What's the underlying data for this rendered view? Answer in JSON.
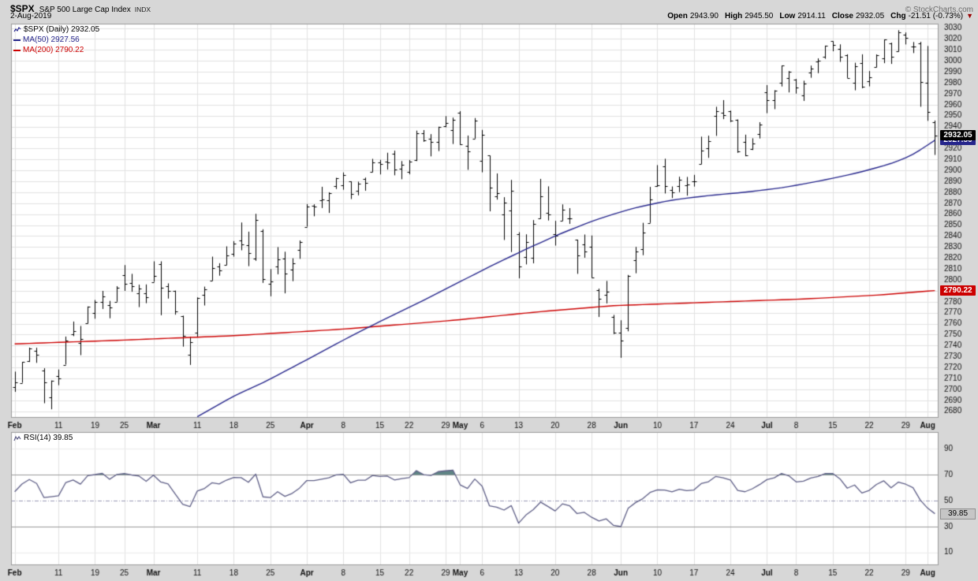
{
  "header": {
    "symbol": "$SPX",
    "name": "S&P 500 Large Cap Index",
    "exchange": "INDX",
    "date": "2-Aug-2019",
    "copyright": "© StockCharts.com",
    "quote": {
      "open_label": "Open",
      "open": "2943.90",
      "high_label": "High",
      "high": "2945.50",
      "low_label": "Low",
      "low": "2914.11",
      "close_label": "Close",
      "close": "2932.05",
      "chg_label": "Chg",
      "chg": "-21.51 (-0.73%)",
      "direction_arrow": "▼"
    }
  },
  "main_chart": {
    "legend": {
      "series_label": "$SPX (Daily) 2932.05",
      "ma50_label": "MA(50) 2927.56",
      "ma200_label": "MA(200) 2790.22"
    },
    "price_labels": {
      "close": "2932.05",
      "ma50": "2927.56",
      "ma200": "2790.22"
    }
  },
  "rsi_panel": {
    "legend_label": "RSI(14) 39.85",
    "value_label": "39.85"
  },
  "colors": {
    "background": "#d7d7d7",
    "plot_bg": "#ffffff",
    "grid": "#e2e2e2",
    "grid_faint": "#ececec",
    "border": "#999999",
    "bar": "#000000",
    "ma50": "#26268c",
    "ma200": "#cc0000",
    "rsi_line": "#5f5f87",
    "rsi_fill": "#5f8585",
    "rsi_band": "#9c9c9c",
    "rsi_mid": "#9a9ab5",
    "axis_text": "#111111"
  },
  "chart_data": {
    "type": "ohlc",
    "title": "$SPX S&P 500 Large Cap Index (Daily)",
    "timeframe": "Daily, Feb 2019 - Aug 2019",
    "y_axis": {
      "min": 2674,
      "max": 3034,
      "tick_min": 2680,
      "tick_max": 3030,
      "tick_step": 10
    },
    "x_ticks": [
      {
        "label": "Feb",
        "i": 0,
        "m": true
      },
      {
        "label": "11",
        "i": 6
      },
      {
        "label": "19",
        "i": 11
      },
      {
        "label": "25",
        "i": 15
      },
      {
        "label": "Mar",
        "i": 19,
        "m": true
      },
      {
        "label": "11",
        "i": 25
      },
      {
        "label": "18",
        "i": 30
      },
      {
        "label": "25",
        "i": 35
      },
      {
        "label": "Apr",
        "i": 40,
        "m": true
      },
      {
        "label": "8",
        "i": 45
      },
      {
        "label": "15",
        "i": 50
      },
      {
        "label": "22",
        "i": 54
      },
      {
        "label": "29",
        "i": 59
      },
      {
        "label": "May",
        "i": 61,
        "m": true
      },
      {
        "label": "6",
        "i": 64
      },
      {
        "label": "13",
        "i": 69
      },
      {
        "label": "20",
        "i": 74
      },
      {
        "label": "28",
        "i": 79
      },
      {
        "label": "Jun",
        "i": 83,
        "m": true
      },
      {
        "label": "10",
        "i": 88
      },
      {
        "label": "17",
        "i": 93
      },
      {
        "label": "24",
        "i": 98
      },
      {
        "label": "Jul",
        "i": 103,
        "m": true
      },
      {
        "label": "8",
        "i": 107
      },
      {
        "label": "15",
        "i": 112
      },
      {
        "label": "22",
        "i": 117
      },
      {
        "label": "29",
        "i": 122
      },
      {
        "label": "Aug",
        "i": 125,
        "m": true
      }
    ],
    "dates": [
      "2/1",
      "2/4",
      "2/5",
      "2/6",
      "2/7",
      "2/8",
      "2/11",
      "2/12",
      "2/13",
      "2/14",
      "2/15",
      "2/19",
      "2/20",
      "2/21",
      "2/22",
      "2/25",
      "2/26",
      "2/27",
      "2/28",
      "3/1",
      "3/4",
      "3/5",
      "3/6",
      "3/7",
      "3/8",
      "3/11",
      "3/12",
      "3/13",
      "3/14",
      "3/15",
      "3/18",
      "3/19",
      "3/20",
      "3/21",
      "3/22",
      "3/25",
      "3/26",
      "3/27",
      "3/28",
      "3/29",
      "4/1",
      "4/2",
      "4/3",
      "4/4",
      "4/5",
      "4/8",
      "4/9",
      "4/10",
      "4/11",
      "4/12",
      "4/15",
      "4/16",
      "4/17",
      "4/18",
      "4/22",
      "4/23",
      "4/24",
      "4/25",
      "4/26",
      "4/29",
      "4/30",
      "5/1",
      "5/2",
      "5/3",
      "5/6",
      "5/7",
      "5/8",
      "5/9",
      "5/10",
      "5/13",
      "5/14",
      "5/15",
      "5/16",
      "5/17",
      "5/20",
      "5/21",
      "5/22",
      "5/23",
      "5/24",
      "5/28",
      "5/29",
      "5/30",
      "5/31",
      "6/3",
      "6/4",
      "6/5",
      "6/6",
      "6/7",
      "6/10",
      "6/11",
      "6/12",
      "6/13",
      "6/14",
      "6/17",
      "6/18",
      "6/19",
      "6/20",
      "6/21",
      "6/24",
      "6/25",
      "6/26",
      "6/27",
      "6/28",
      "7/1",
      "7/2",
      "7/3",
      "7/5",
      "7/8",
      "7/9",
      "7/10",
      "7/11",
      "7/12",
      "7/15",
      "7/16",
      "7/17",
      "7/18",
      "7/19",
      "7/22",
      "7/23",
      "7/24",
      "7/25",
      "7/26",
      "7/29",
      "7/30",
      "7/31",
      "8/1",
      "8/2"
    ],
    "ohlc": [
      [
        2702.3,
        2716.2,
        2697.7,
        2706.5
      ],
      [
        2706.0,
        2725.0,
        2706.0,
        2724.9
      ],
      [
        2725.5,
        2738.1,
        2725.0,
        2737.7
      ],
      [
        2735.0,
        2738.0,
        2724.2,
        2731.6
      ],
      [
        2717.5,
        2719.3,
        2687.3,
        2706.1
      ],
      [
        2692.4,
        2708.1,
        2681.8,
        2707.9
      ],
      [
        2712.4,
        2718.1,
        2703.8,
        2709.8
      ],
      [
        2722.6,
        2748.2,
        2722.6,
        2744.7
      ],
      [
        2750.3,
        2761.9,
        2748.6,
        2753.0
      ],
      [
        2742.2,
        2757.9,
        2731.2,
        2745.7
      ],
      [
        2760.2,
        2775.7,
        2760.2,
        2775.6
      ],
      [
        2769.7,
        2781.6,
        2764.5,
        2779.8
      ],
      [
        2780.0,
        2789.9,
        2773.4,
        2784.7
      ],
      [
        2777.0,
        2780.8,
        2764.9,
        2774.9
      ],
      [
        2780.0,
        2794.2,
        2780.0,
        2792.7
      ],
      [
        2804.2,
        2813.5,
        2789.9,
        2796.1
      ],
      [
        2797.4,
        2805.5,
        2789.1,
        2793.9
      ],
      [
        2788.0,
        2795.6,
        2775.1,
        2792.4
      ],
      [
        2787.7,
        2795.8,
        2778.7,
        2784.5
      ],
      [
        2798.2,
        2816.9,
        2798.2,
        2803.7
      ],
      [
        2814.4,
        2816.9,
        2767.7,
        2792.8
      ],
      [
        2794.0,
        2796.8,
        2782.9,
        2789.7
      ],
      [
        2790.2,
        2790.2,
        2768.2,
        2771.5
      ],
      [
        2766.6,
        2767.3,
        2739.0,
        2748.9
      ],
      [
        2731.9,
        2748.1,
        2722.3,
        2743.1
      ],
      [
        2751.5,
        2784.0,
        2747.4,
        2783.3
      ],
      [
        2786.1,
        2793.8,
        2776.6,
        2791.5
      ],
      [
        2799.3,
        2821.2,
        2799.3,
        2810.9
      ],
      [
        2812.0,
        2815.2,
        2803.8,
        2808.5
      ],
      [
        2813.6,
        2830.6,
        2813.6,
        2822.5
      ],
      [
        2824.0,
        2835.4,
        2821.2,
        2832.9
      ],
      [
        2836.1,
        2852.4,
        2827.0,
        2832.6
      ],
      [
        2831.6,
        2844.0,
        2812.5,
        2824.2
      ],
      [
        2819.7,
        2860.3,
        2817.4,
        2854.9
      ],
      [
        2844.8,
        2846.2,
        2797.2,
        2800.7
      ],
      [
        2796.4,
        2809.8,
        2785.0,
        2798.4
      ],
      [
        2812.0,
        2829.9,
        2805.1,
        2818.5
      ],
      [
        2819.2,
        2825.7,
        2787.7,
        2805.4
      ],
      [
        2809.4,
        2819.7,
        2798.8,
        2815.4
      ],
      [
        2827.3,
        2836.0,
        2819.2,
        2834.4
      ],
      [
        2848.6,
        2869.2,
        2848.6,
        2867.2
      ],
      [
        2867.8,
        2869.0,
        2858.1,
        2867.2
      ],
      [
        2872.4,
        2885.0,
        2865.6,
        2873.4
      ],
      [
        2873.0,
        2880.0,
        2861.1,
        2879.4
      ],
      [
        2885.4,
        2893.2,
        2883.0,
        2892.7
      ],
      [
        2886.4,
        2898.1,
        2882.3,
        2895.8
      ],
      [
        2889.9,
        2890.0,
        2873.8,
        2878.2
      ],
      [
        2881.2,
        2889.7,
        2877.2,
        2888.2
      ],
      [
        2891.9,
        2893.4,
        2881.4,
        2888.3
      ],
      [
        2899.0,
        2910.5,
        2898.4,
        2907.4
      ],
      [
        2907.0,
        2909.6,
        2896.3,
        2905.6
      ],
      [
        2908.0,
        2916.1,
        2900.7,
        2907.1
      ],
      [
        2915.1,
        2918.0,
        2895.5,
        2900.5
      ],
      [
        2901.7,
        2908.5,
        2891.9,
        2905.0
      ],
      [
        2898.8,
        2909.5,
        2896.4,
        2908.0
      ],
      [
        2909.7,
        2936.3,
        2908.5,
        2933.7
      ],
      [
        2934.0,
        2936.8,
        2926.1,
        2927.3
      ],
      [
        2928.9,
        2933.1,
        2912.8,
        2926.2
      ],
      [
        2925.8,
        2939.9,
        2917.6,
        2939.9
      ],
      [
        2940.6,
        2949.5,
        2939.4,
        2943.0
      ],
      [
        2937.1,
        2948.2,
        2924.1,
        2945.8
      ],
      [
        2952.3,
        2954.1,
        2923.4,
        2923.7
      ],
      [
        2922.2,
        2931.8,
        2900.5,
        2917.5
      ],
      [
        2929.0,
        2947.8,
        2929.0,
        2945.6
      ],
      [
        2909.0,
        2937.0,
        2898.2,
        2932.5
      ],
      [
        2913.4,
        2913.4,
        2862.6,
        2884.1
      ],
      [
        2876.0,
        2897.2,
        2873.3,
        2879.4
      ],
      [
        2860.0,
        2875.5,
        2836.4,
        2870.7
      ],
      [
        2863.1,
        2891.3,
        2825.4,
        2881.4
      ],
      [
        2841.9,
        2843.5,
        2801.4,
        2811.9
      ],
      [
        2820.6,
        2841.6,
        2814.1,
        2834.4
      ],
      [
        2820.2,
        2854.6,
        2815.1,
        2851.0
      ],
      [
        2855.8,
        2892.2,
        2855.8,
        2876.3
      ],
      [
        2861.0,
        2885.4,
        2854.2,
        2859.5
      ],
      [
        2841.9,
        2853.9,
        2831.3,
        2840.2
      ],
      [
        2854.0,
        2868.9,
        2854.0,
        2864.4
      ],
      [
        2856.1,
        2865.5,
        2851.1,
        2856.3
      ],
      [
        2836.6,
        2836.6,
        2805.5,
        2822.2
      ],
      [
        2832.2,
        2841.4,
        2820.2,
        2826.1
      ],
      [
        2830.0,
        2840.5,
        2801.9,
        2802.4
      ],
      [
        2790.5,
        2792.0,
        2766.1,
        2783.0
      ],
      [
        2786.6,
        2799.0,
        2778.5,
        2788.9
      ],
      [
        2766.2,
        2768.0,
        2750.5,
        2752.1
      ],
      [
        2751.5,
        2763.1,
        2728.8,
        2744.5
      ],
      [
        2756.4,
        2804.5,
        2753.0,
        2803.3
      ],
      [
        2818.1,
        2830.1,
        2806.0,
        2826.2
      ],
      [
        2828.4,
        2852.1,
        2822.5,
        2843.5
      ],
      [
        2852.0,
        2884.9,
        2852.0,
        2873.3
      ],
      [
        2885.6,
        2904.8,
        2885.0,
        2886.7
      ],
      [
        2903.9,
        2910.6,
        2878.9,
        2885.7
      ],
      [
        2882.0,
        2885.3,
        2874.7,
        2879.8
      ],
      [
        2886.0,
        2894.2,
        2880.1,
        2891.6
      ],
      [
        2886.7,
        2894.0,
        2876.9,
        2887.0
      ],
      [
        2889.8,
        2895.9,
        2885.2,
        2889.7
      ],
      [
        2905.8,
        2930.8,
        2905.8,
        2917.8
      ],
      [
        2920.6,
        2931.7,
        2911.4,
        2926.5
      ],
      [
        2949.6,
        2958.1,
        2931.5,
        2954.2
      ],
      [
        2952.6,
        2964.2,
        2946.8,
        2950.5
      ],
      [
        2953.8,
        2954.5,
        2944.1,
        2945.4
      ],
      [
        2945.8,
        2946.5,
        2916.0,
        2917.4
      ],
      [
        2926.1,
        2932.6,
        2912.9,
        2913.8
      ],
      [
        2919.7,
        2929.3,
        2918.6,
        2924.9
      ],
      [
        2932.9,
        2944.0,
        2929.1,
        2941.8
      ],
      [
        2971.4,
        2977.9,
        2952.2,
        2964.3
      ],
      [
        2964.0,
        2973.2,
        2955.9,
        2973.0
      ],
      [
        2980.0,
        2995.8,
        2976.6,
        2995.8
      ],
      [
        2984.3,
        2990.7,
        2971.2,
        2990.4
      ],
      [
        2982.6,
        2983.5,
        2970.1,
        2976.0
      ],
      [
        2968.4,
        2981.9,
        2963.4,
        2979.6
      ],
      [
        2989.2,
        2995.7,
        2984.6,
        2993.1
      ],
      [
        2999.6,
        3002.3,
        2988.8,
        2999.9
      ],
      [
        3003.4,
        3013.9,
        3001.9,
        3013.8
      ],
      [
        3017.8,
        3017.8,
        3008.8,
        3014.3
      ],
      [
        3010.9,
        3015.1,
        2999.1,
        3004.0
      ],
      [
        3005.5,
        3006.0,
        2984.4,
        2984.4
      ],
      [
        2979.7,
        2998.3,
        2973.1,
        2995.1
      ],
      [
        2998.0,
        3006.0,
        2975.0,
        2976.6
      ],
      [
        2981.6,
        2990.7,
        2976.7,
        2985.0
      ],
      [
        2994.2,
        3005.9,
        2994.2,
        3005.5
      ],
      [
        3002.4,
        3019.6,
        2997.9,
        3019.6
      ],
      [
        3016.3,
        3016.6,
        2997.2,
        3003.7
      ],
      [
        3008.6,
        3028.0,
        3008.6,
        3025.9
      ],
      [
        3024.0,
        3026.0,
        3015.0,
        3021.0
      ],
      [
        3013.0,
        3017.2,
        3007.1,
        3013.2
      ],
      [
        3016.2,
        3017.4,
        2958.1,
        2980.4
      ],
      [
        2980.3,
        3013.6,
        2945.2,
        2953.6
      ],
      [
        2943.9,
        2945.5,
        2914.1,
        2932.05
      ]
    ],
    "ma50": {
      "label": "MA(50)",
      "last": 2927.56,
      "anchors": [
        [
          25,
          2675
        ],
        [
          30,
          2694
        ],
        [
          34,
          2706
        ],
        [
          40,
          2727
        ],
        [
          45,
          2745
        ],
        [
          50,
          2762
        ],
        [
          55,
          2778
        ],
        [
          60,
          2795
        ],
        [
          65,
          2812
        ],
        [
          70,
          2828
        ],
        [
          75,
          2843
        ],
        [
          80,
          2856
        ],
        [
          85,
          2866
        ],
        [
          90,
          2873
        ],
        [
          95,
          2877
        ],
        [
          100,
          2880
        ],
        [
          105,
          2884
        ],
        [
          110,
          2890
        ],
        [
          115,
          2897
        ],
        [
          120,
          2906
        ],
        [
          123,
          2914
        ],
        [
          126,
          2927.56
        ]
      ]
    },
    "ma200": {
      "label": "MA(200)",
      "last": 2790.22,
      "anchors": [
        [
          0,
          2741.5
        ],
        [
          15,
          2745
        ],
        [
          30,
          2749
        ],
        [
          45,
          2755
        ],
        [
          60,
          2763
        ],
        [
          72,
          2771
        ],
        [
          82,
          2776.5
        ],
        [
          95,
          2779.5
        ],
        [
          108,
          2782.5
        ],
        [
          118,
          2786
        ],
        [
          126,
          2790.22
        ]
      ]
    },
    "rsi": {
      "label": "RSI(14)",
      "period": 14,
      "last": 39.85,
      "seed_avg_gain": 5.0,
      "seed_avg_loss": 3.8,
      "overbought": 70,
      "midline": 50,
      "oversold": 30,
      "y_ticks": [
        90,
        70,
        50,
        30,
        10
      ],
      "range": [
        0,
        103
      ]
    }
  }
}
